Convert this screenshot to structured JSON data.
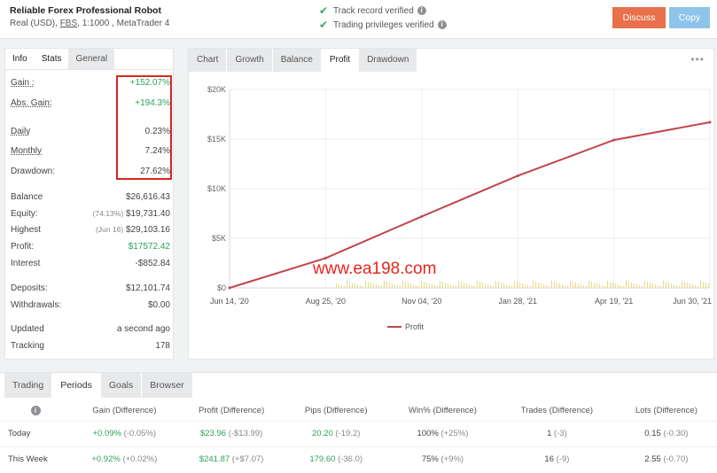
{
  "header": {
    "title": "Reliable Forex Professional Robot",
    "account_prefix": "Real (USD),",
    "broker": "FBS",
    "account_suffix": ", 1:1000 , MetaTrader 4",
    "verified_track": "Track record verified",
    "verified_trading": "Trading privileges verified",
    "discuss_label": "Discuss",
    "copy_label": "Copy"
  },
  "left_tabs": [
    "Info",
    "Stats",
    "General"
  ],
  "stats": [
    {
      "label": "Gain :",
      "value": "+152.07%",
      "green": true,
      "underline": true
    },
    {
      "label": "Abs. Gain:",
      "value": "+194.3%",
      "green": true,
      "underline": true
    },
    {
      "label": "Daily",
      "value": "0.23%",
      "green": false,
      "underline": true
    },
    {
      "label": "Monthly",
      "value": "7.24%",
      "green": false,
      "underline": true
    },
    {
      "label": "Drawdown:",
      "value": "27.62%",
      "green": false,
      "underline": false
    },
    {
      "label": "Balance",
      "value": "$26,616.43",
      "green": false,
      "underline": false
    },
    {
      "label": "Equity:",
      "pre": "(74.13%)",
      "value": "$19,731.40",
      "green": false,
      "underline": false
    },
    {
      "label": "Highest",
      "pre": "(Jun 16)",
      "value": "$29,103.16",
      "green": false,
      "underline": false
    },
    {
      "label": "Profit:",
      "value": "$17572.42",
      "green": true,
      "underline": false
    },
    {
      "label": "Interest",
      "value": "-$852.84",
      "green": false,
      "underline": false
    },
    {
      "label": "Deposits:",
      "value": "$12,101.74",
      "green": false,
      "underline": false
    },
    {
      "label": "Withdrawals:",
      "value": "$0.00",
      "green": false,
      "underline": false
    },
    {
      "label": "Updated",
      "value": "a second ago",
      "green": false,
      "underline": false
    },
    {
      "label": "Tracking",
      "value": "178",
      "green": false,
      "underline": false
    }
  ],
  "chart_tabs": [
    "Chart",
    "Growth",
    "Balance",
    "Profit",
    "Drawdown"
  ],
  "chart_menu": "•••",
  "chart_data": {
    "type": "line",
    "yticks": [
      "$20K",
      "$15K",
      "$10K",
      "$5K",
      "$0"
    ],
    "ylim": [
      0,
      20000
    ],
    "xticks": [
      "Jun 14, '20",
      "Aug 25, '20",
      "Nov 04, '20",
      "Jan 28, '21",
      "Apr 19, '21",
      "Jun 30, '21"
    ],
    "series": [
      {
        "name": "Profit",
        "color": "#c0474d",
        "x": [
          "Jun 14, '20",
          "Aug 25, '20",
          "Nov 04, '20",
          "Jan 28, '21",
          "Apr 19, '21",
          "Jun 30, '21"
        ],
        "values": [
          0,
          3000,
          7200,
          11300,
          14900,
          16700
        ]
      }
    ],
    "legend": "Profit",
    "legend_placement": "bottom-center"
  },
  "watermark": "www.ea198.com",
  "bottom_tabs": [
    "Trading",
    "Periods",
    "Goals",
    "Browser"
  ],
  "periods": {
    "headers": [
      "Gain (Difference)",
      "Profit (Difference)",
      "Pips (Difference)",
      "Win% (Difference)",
      "Trades (Difference)",
      "Lots (Difference)"
    ],
    "rows": [
      {
        "period": "Today",
        "gain": "+0.09%",
        "gain_diff": "(-0.05%)",
        "profit": "$23.96",
        "profit_diff": "(-$13.99)",
        "pips": "20.20",
        "pips_diff": "(-19.2)",
        "win": "100%",
        "win_diff": "(+25%)",
        "trades": "1",
        "trades_diff": "(-3)",
        "lots": "0.15",
        "lots_diff": "(-0.30)"
      },
      {
        "period": "This Week",
        "gain": "+0.92%",
        "gain_diff": "(+0.02%)",
        "profit": "$241.87",
        "profit_diff": "(+$7.07)",
        "pips": "179.60",
        "pips_diff": "(-36.0)",
        "win": "75%",
        "win_diff": "(+9%)",
        "trades": "16",
        "trades_diff": "(-9)",
        "lots": "2.55",
        "lots_diff": "(-0.70)"
      }
    ]
  }
}
